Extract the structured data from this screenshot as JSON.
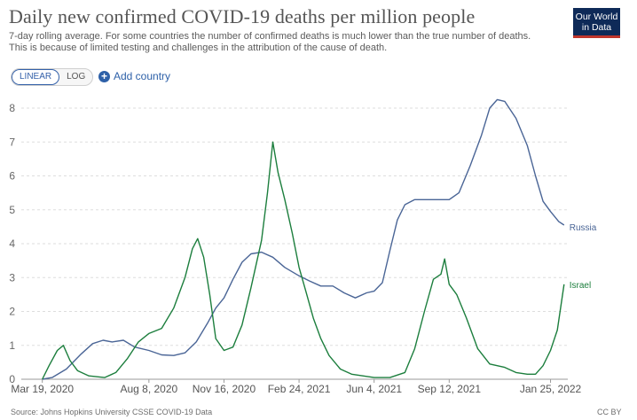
{
  "header": {
    "title": "Daily new confirmed COVID-19 deaths per million people",
    "subtitle_line1": "7-day rolling average. For some countries the number of confirmed deaths is much lower than the true number of deaths.",
    "subtitle_line2": "This is because of limited testing and challenges in the attribution of the cause of death.",
    "logo_line1": "Our World",
    "logo_line2": "in Data"
  },
  "controls": {
    "linear_label": "LINEAR",
    "log_label": "LOG",
    "add_country_label": "Add country"
  },
  "footer": {
    "source": "Source: Johns Hopkins University CSSE COVID-19 Data",
    "license": "CC BY"
  },
  "colors": {
    "russia": "#4a6596",
    "israel": "#1c7e3d",
    "grid": "#dddddd",
    "accent": "#2d60a8"
  },
  "chart_data": {
    "type": "line",
    "x_ticks": [
      "Mar 19, 2020",
      "Aug 8, 2020",
      "Nov 16, 2020",
      "Feb 24, 2021",
      "Jun 4, 2021",
      "Sep 12, 2021",
      "Jan 25, 2022"
    ],
    "y_ticks": [
      "0",
      "1",
      "2",
      "3",
      "4",
      "5",
      "6",
      "7",
      "8"
    ],
    "ylim": [
      0,
      8
    ],
    "x_range": [
      "2020-02-20",
      "2022-02-17"
    ],
    "grid": "horizontal dashed",
    "series": [
      {
        "name": "Russia",
        "color": "#4a6596",
        "points": [
          [
            "2020-03-19",
            0.0
          ],
          [
            "2020-04-01",
            0.05
          ],
          [
            "2020-04-20",
            0.3
          ],
          [
            "2020-05-10",
            0.75
          ],
          [
            "2020-05-25",
            1.05
          ],
          [
            "2020-06-08",
            1.15
          ],
          [
            "2020-06-20",
            1.1
          ],
          [
            "2020-07-05",
            1.15
          ],
          [
            "2020-07-20",
            0.95
          ],
          [
            "2020-08-08",
            0.85
          ],
          [
            "2020-08-25",
            0.72
          ],
          [
            "2020-09-10",
            0.7
          ],
          [
            "2020-09-25",
            0.78
          ],
          [
            "2020-10-10",
            1.1
          ],
          [
            "2020-10-25",
            1.65
          ],
          [
            "2020-11-05",
            2.1
          ],
          [
            "2020-11-16",
            2.4
          ],
          [
            "2020-11-28",
            2.95
          ],
          [
            "2020-12-10",
            3.45
          ],
          [
            "2020-12-22",
            3.7
          ],
          [
            "2021-01-05",
            3.75
          ],
          [
            "2021-01-20",
            3.6
          ],
          [
            "2021-02-05",
            3.3
          ],
          [
            "2021-02-24",
            3.05
          ],
          [
            "2021-03-10",
            2.9
          ],
          [
            "2021-03-25",
            2.75
          ],
          [
            "2021-04-10",
            2.75
          ],
          [
            "2021-04-25",
            2.55
          ],
          [
            "2021-05-10",
            2.4
          ],
          [
            "2021-05-25",
            2.55
          ],
          [
            "2021-06-04",
            2.6
          ],
          [
            "2021-06-15",
            2.85
          ],
          [
            "2021-06-25",
            3.8
          ],
          [
            "2021-07-05",
            4.7
          ],
          [
            "2021-07-15",
            5.15
          ],
          [
            "2021-07-28",
            5.3
          ],
          [
            "2021-08-15",
            5.3
          ],
          [
            "2021-09-01",
            5.3
          ],
          [
            "2021-09-12",
            5.3
          ],
          [
            "2021-09-25",
            5.5
          ],
          [
            "2021-10-10",
            6.3
          ],
          [
            "2021-10-25",
            7.2
          ],
          [
            "2021-11-05",
            8.0
          ],
          [
            "2021-11-15",
            8.25
          ],
          [
            "2021-11-25",
            8.2
          ],
          [
            "2021-12-10",
            7.7
          ],
          [
            "2021-12-25",
            6.9
          ],
          [
            "2022-01-05",
            6.0
          ],
          [
            "2022-01-15",
            5.25
          ],
          [
            "2022-01-25",
            4.95
          ],
          [
            "2022-02-05",
            4.65
          ],
          [
            "2022-02-12",
            4.55
          ]
        ]
      },
      {
        "name": "Israel",
        "color": "#1c7e3d",
        "points": [
          [
            "2020-03-19",
            0.0
          ],
          [
            "2020-03-28",
            0.4
          ],
          [
            "2020-04-08",
            0.85
          ],
          [
            "2020-04-16",
            1.0
          ],
          [
            "2020-04-25",
            0.55
          ],
          [
            "2020-05-05",
            0.25
          ],
          [
            "2020-05-20",
            0.1
          ],
          [
            "2020-06-10",
            0.05
          ],
          [
            "2020-06-25",
            0.2
          ],
          [
            "2020-07-10",
            0.6
          ],
          [
            "2020-07-25",
            1.1
          ],
          [
            "2020-08-08",
            1.35
          ],
          [
            "2020-08-25",
            1.5
          ],
          [
            "2020-09-10",
            2.1
          ],
          [
            "2020-09-25",
            3.0
          ],
          [
            "2020-10-05",
            3.85
          ],
          [
            "2020-10-12",
            4.15
          ],
          [
            "2020-10-20",
            3.6
          ],
          [
            "2020-10-28",
            2.5
          ],
          [
            "2020-11-05",
            1.2
          ],
          [
            "2020-11-16",
            0.85
          ],
          [
            "2020-11-28",
            0.95
          ],
          [
            "2020-12-10",
            1.6
          ],
          [
            "2020-12-22",
            2.7
          ],
          [
            "2021-01-05",
            4.1
          ],
          [
            "2021-01-13",
            5.5
          ],
          [
            "2021-01-20",
            7.0
          ],
          [
            "2021-01-27",
            6.1
          ],
          [
            "2021-02-05",
            5.3
          ],
          [
            "2021-02-15",
            4.3
          ],
          [
            "2021-02-24",
            3.3
          ],
          [
            "2021-03-05",
            2.6
          ],
          [
            "2021-03-15",
            1.8
          ],
          [
            "2021-03-25",
            1.2
          ],
          [
            "2021-04-05",
            0.7
          ],
          [
            "2021-04-20",
            0.3
          ],
          [
            "2021-05-05",
            0.15
          ],
          [
            "2021-05-20",
            0.1
          ],
          [
            "2021-06-04",
            0.05
          ],
          [
            "2021-06-25",
            0.05
          ],
          [
            "2021-07-15",
            0.2
          ],
          [
            "2021-07-28",
            0.9
          ],
          [
            "2021-08-10",
            2.0
          ],
          [
            "2021-08-22",
            2.95
          ],
          [
            "2021-09-01",
            3.1
          ],
          [
            "2021-09-06",
            3.55
          ],
          [
            "2021-09-12",
            2.8
          ],
          [
            "2021-09-22",
            2.5
          ],
          [
            "2021-10-05",
            1.8
          ],
          [
            "2021-10-20",
            0.9
          ],
          [
            "2021-11-05",
            0.45
          ],
          [
            "2021-11-25",
            0.35
          ],
          [
            "2021-12-10",
            0.2
          ],
          [
            "2021-12-25",
            0.15
          ],
          [
            "2022-01-05",
            0.15
          ],
          [
            "2022-01-15",
            0.4
          ],
          [
            "2022-01-25",
            0.85
          ],
          [
            "2022-02-03",
            1.45
          ],
          [
            "2022-02-12",
            2.8
          ]
        ]
      }
    ]
  }
}
